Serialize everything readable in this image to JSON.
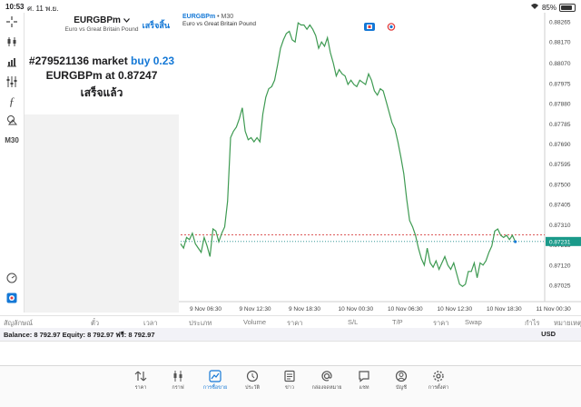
{
  "status": {
    "time": "10:53",
    "date": "ศ. 11 พ.ย.",
    "battery": "85%",
    "battery_level": 0.85
  },
  "toolbar": {
    "items": [
      {
        "name": "crosshair-tool",
        "glyph": "+"
      },
      {
        "name": "chart-type-tool",
        "glyph": "⫾"
      },
      {
        "name": "indicators-tool",
        "glyph": "▟"
      },
      {
        "name": "indicator-settings-tool",
        "glyph": "⫶"
      },
      {
        "name": "function-tool",
        "glyph": "ƒ"
      },
      {
        "name": "objects-tool",
        "glyph": "⌕"
      }
    ],
    "timeframe": "M30"
  },
  "order_panel": {
    "symbol": "EURGBPm",
    "dropdown_icon": "chevron-down-icon",
    "description": "Euro vs Great Britain Pound",
    "done_label": "เสร็จสิ้น",
    "ticket": "#279521136 market",
    "side_volume": "buy 0.23",
    "symbol_at": "EURGBPm at",
    "price": "0.87247",
    "result": "เสร็จแล้ว"
  },
  "chart": {
    "symbol": "EURGBPm",
    "timeframe": "• M30",
    "description": "Euro vs Great Britain Pound",
    "current_price": "0.87231",
    "colors": {
      "line": "#3e9a52",
      "bid_line": "#1a8a8a",
      "ask_line": "#d84343",
      "label_bg": "#1a9a8a",
      "grid": "#e8e8e8"
    }
  },
  "chart_data": {
    "type": "line",
    "title": "",
    "xlabel": "",
    "ylabel": "",
    "y_ticks": [
      "0.88265",
      "0.88170",
      "0.88070",
      "0.87975",
      "0.87880",
      "0.87785",
      "0.87690",
      "0.87595",
      "0.87500",
      "0.87405",
      "0.87310",
      "0.87215",
      "0.87120",
      "0.87025"
    ],
    "x_ticks": [
      "9 Nov 06:30",
      "9 Nov 12:30",
      "9 Nov 18:30",
      "10 Nov 00:30",
      "10 Nov 06:30",
      "10 Nov 12:30",
      "10 Nov 18:30",
      "11 Nov 00:30"
    ],
    "ylim": [
      0.86975,
      0.8832
    ],
    "x_range": [
      0,
      124
    ],
    "series": [
      {
        "values": [
          [
            0,
            0.8722
          ],
          [
            1,
            0.872
          ],
          [
            2,
            0.8725
          ],
          [
            3,
            0.8724
          ],
          [
            4,
            0.8727
          ],
          [
            5,
            0.8722
          ],
          [
            6,
            0.872
          ],
          [
            7,
            0.8718
          ],
          [
            8,
            0.8725
          ],
          [
            9,
            0.8721
          ],
          [
            10,
            0.8716
          ],
          [
            11,
            0.8729
          ],
          [
            12,
            0.8728
          ],
          [
            13,
            0.8723
          ],
          [
            14,
            0.8727
          ],
          [
            15,
            0.873
          ],
          [
            16,
            0.8742
          ],
          [
            17,
            0.8772
          ],
          [
            18,
            0.8775
          ],
          [
            19,
            0.8777
          ],
          [
            20,
            0.8781
          ],
          [
            21,
            0.8786
          ],
          [
            22,
            0.8775
          ],
          [
            23,
            0.8771
          ],
          [
            24,
            0.8772
          ],
          [
            25,
            0.877
          ],
          [
            26,
            0.8772
          ],
          [
            27,
            0.877
          ],
          [
            28,
            0.8783
          ],
          [
            29,
            0.8791
          ],
          [
            30,
            0.8795
          ],
          [
            31,
            0.8796
          ],
          [
            32,
            0.8799
          ],
          [
            33,
            0.8806
          ],
          [
            34,
            0.8814
          ],
          [
            35,
            0.8818
          ],
          [
            36,
            0.8821
          ],
          [
            37,
            0.8822
          ],
          [
            38,
            0.8818
          ],
          [
            39,
            0.8817
          ],
          [
            40,
            0.8826
          ],
          [
            41,
            0.8825
          ],
          [
            42,
            0.8825
          ],
          [
            43,
            0.8823
          ],
          [
            44,
            0.8825
          ],
          [
            45,
            0.8823
          ],
          [
            46,
            0.882
          ],
          [
            47,
            0.8814
          ],
          [
            48,
            0.8817
          ],
          [
            49,
            0.8815
          ],
          [
            50,
            0.8819
          ],
          [
            51,
            0.8812
          ],
          [
            52,
            0.8807
          ],
          [
            53,
            0.8801
          ],
          [
            54,
            0.8804
          ],
          [
            55,
            0.8802
          ],
          [
            56,
            0.8801
          ],
          [
            57,
            0.8797
          ],
          [
            58,
            0.8799
          ],
          [
            59,
            0.8797
          ],
          [
            60,
            0.8796
          ],
          [
            61,
            0.8799
          ],
          [
            62,
            0.8798
          ],
          [
            63,
            0.8797
          ],
          [
            64,
            0.8802
          ],
          [
            65,
            0.8799
          ],
          [
            66,
            0.8794
          ],
          [
            67,
            0.8792
          ],
          [
            68,
            0.8795
          ],
          [
            69,
            0.8794
          ],
          [
            70,
            0.8789
          ],
          [
            71,
            0.8784
          ],
          [
            72,
            0.8779
          ],
          [
            73,
            0.8776
          ],
          [
            74,
            0.877
          ],
          [
            75,
            0.8763
          ],
          [
            76,
            0.8755
          ],
          [
            77,
            0.8743
          ],
          [
            78,
            0.8733
          ],
          [
            79,
            0.873
          ],
          [
            80,
            0.8726
          ],
          [
            81,
            0.872
          ],
          [
            82,
            0.8715
          ],
          [
            83,
            0.8712
          ],
          [
            84,
            0.872
          ],
          [
            85,
            0.8713
          ],
          [
            86,
            0.8711
          ],
          [
            87,
            0.8714
          ],
          [
            88,
            0.871
          ],
          [
            89,
            0.8713
          ],
          [
            90,
            0.8716
          ],
          [
            91,
            0.8712
          ],
          [
            92,
            0.871
          ],
          [
            93,
            0.8713
          ],
          [
            94,
            0.8708
          ],
          [
            95,
            0.8703
          ],
          [
            96,
            0.8702
          ],
          [
            97,
            0.8703
          ],
          [
            98,
            0.8709
          ],
          [
            99,
            0.8709
          ],
          [
            100,
            0.8713
          ],
          [
            101,
            0.8706
          ],
          [
            102,
            0.8713
          ],
          [
            103,
            0.8712
          ],
          [
            104,
            0.8714
          ],
          [
            105,
            0.8718
          ],
          [
            106,
            0.8721
          ],
          [
            107,
            0.8728
          ],
          [
            108,
            0.8729
          ],
          [
            109,
            0.8726
          ],
          [
            110,
            0.8725
          ],
          [
            111,
            0.8726
          ],
          [
            112,
            0.8724
          ],
          [
            113,
            0.8726
          ],
          [
            114,
            0.8723
          ]
        ]
      }
    ],
    "bid": 0.87231,
    "ask": 0.87262,
    "grid": true
  },
  "table_header": {
    "columns": [
      "สัญลักษณ์",
      "ตั๋ว",
      "เวลา",
      "ประเภท",
      "Volume",
      "ราคา",
      "S/L",
      "T/P",
      "ราคา",
      "Swap",
      "กำไร",
      "หมายเหตุ"
    ]
  },
  "balance": {
    "text": "Balance: 8 792.97 Equity: 8 792.97 ฟรี: 8 792.97",
    "currency": "USD"
  },
  "tabs": [
    {
      "label": "ราคา",
      "icon": "quotes-icon"
    },
    {
      "label": "กราฟ",
      "icon": "chart-icon"
    },
    {
      "label": "การซื้อขาย",
      "icon": "trade-icon",
      "active": true
    },
    {
      "label": "ประวัติ",
      "icon": "history-icon"
    },
    {
      "label": "ข่าว",
      "icon": "news-icon"
    },
    {
      "label": "กล่องจดหมาย",
      "icon": "mailbox-icon"
    },
    {
      "label": "แชท",
      "icon": "chat-icon"
    },
    {
      "label": "บัญชี",
      "icon": "account-icon"
    },
    {
      "label": "การตั้งค่า",
      "icon": "settings-icon"
    }
  ]
}
